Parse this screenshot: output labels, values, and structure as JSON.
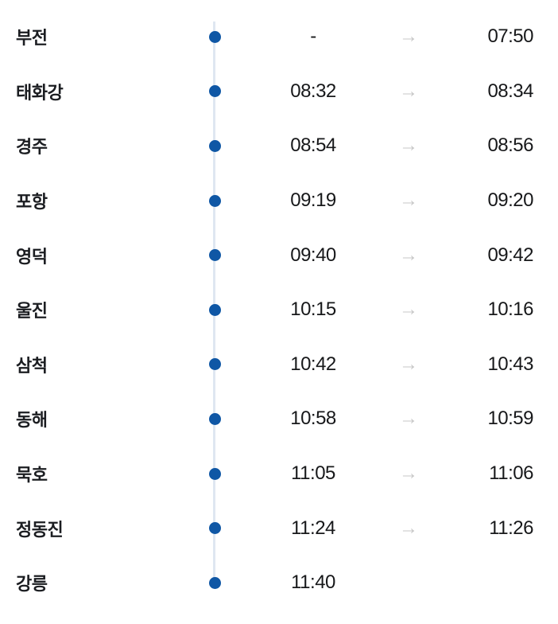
{
  "colors": {
    "background": "#ffffff",
    "dot": "#0f57a5",
    "line": "#dfe7f1",
    "arrow": "#c7c7c7",
    "station_text": "#1b1d21",
    "time_text": "#17181a"
  },
  "icons": {
    "arrow_right": "→",
    "station_dot": "●"
  },
  "timetable": {
    "rows": [
      {
        "station": "부전",
        "arrival": "-",
        "departure": "07:50"
      },
      {
        "station": "태화강",
        "arrival": "08:32",
        "departure": "08:34"
      },
      {
        "station": "경주",
        "arrival": "08:54",
        "departure": "08:56"
      },
      {
        "station": "포항",
        "arrival": "09:19",
        "departure": "09:20"
      },
      {
        "station": "영덕",
        "arrival": "09:40",
        "departure": "09:42"
      },
      {
        "station": "울진",
        "arrival": "10:15",
        "departure": "10:16"
      },
      {
        "station": "삼척",
        "arrival": "10:42",
        "departure": "10:43"
      },
      {
        "station": "동해",
        "arrival": "10:58",
        "departure": "10:59"
      },
      {
        "station": "묵호",
        "arrival": "11:05",
        "departure": "11:06"
      },
      {
        "station": "정동진",
        "arrival": "11:24",
        "departure": "11:26"
      },
      {
        "station": "강릉",
        "arrival": "11:40",
        "departure": ""
      }
    ]
  }
}
